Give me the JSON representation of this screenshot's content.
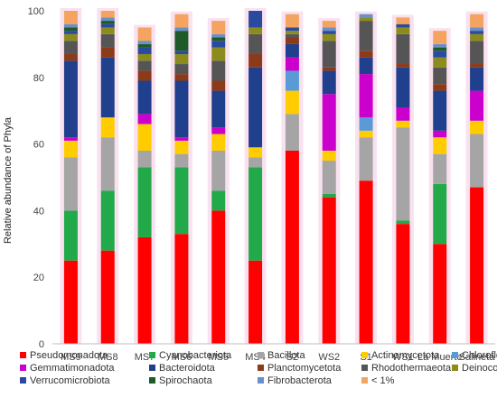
{
  "chart_data": {
    "type": "bar",
    "stacked": true,
    "title": "",
    "xlabel": "",
    "ylabel": "Relative abundance of Phyla",
    "ylim": [
      0,
      100
    ],
    "yticks": [
      0,
      20,
      40,
      60,
      80,
      100
    ],
    "grid": false,
    "legend_position": "bottom",
    "categories": [
      "MS9",
      "MS8",
      "MS7",
      "MS6",
      "MS5",
      "MS4",
      "S2",
      "WS2",
      "S1",
      "WS1",
      "La Muerte",
      "Salineta"
    ],
    "highlight_color": "#f7d6ea",
    "series": [
      {
        "name": "Pseudomonadota",
        "color": "#ff0000",
        "values": [
          25,
          28,
          32,
          33,
          40,
          25,
          58,
          44,
          49,
          36,
          30,
          47
        ]
      },
      {
        "name": "Cyanobacteriota",
        "color": "#22aa4a",
        "values": [
          15,
          18,
          21,
          20,
          6,
          28,
          0,
          1,
          0,
          1,
          18,
          0
        ]
      },
      {
        "name": "Bacillota",
        "color": "#a5a5a5",
        "values": [
          16,
          16,
          5,
          4,
          12,
          3,
          11,
          10,
          13,
          28,
          9,
          16
        ]
      },
      {
        "name": "Actinomycetota",
        "color": "#ffcc00",
        "values": [
          5,
          6,
          8,
          4,
          5,
          3,
          7,
          3,
          2,
          2,
          5,
          4
        ]
      },
      {
        "name": "Chloroflexota",
        "color": "#5b9bd5",
        "values": [
          0,
          0,
          0,
          0,
          0,
          0,
          6,
          0,
          4,
          0,
          0,
          0
        ]
      },
      {
        "name": "Gemmatimonadota",
        "color": "#cc00cc",
        "values": [
          1,
          0,
          3,
          1,
          2,
          0,
          4,
          17,
          13,
          4,
          2,
          9
        ]
      },
      {
        "name": "Bacteroidota",
        "color": "#203f8c",
        "values": [
          23,
          18,
          10,
          17,
          11,
          24,
          4,
          7,
          5,
          12,
          12,
          7
        ]
      },
      {
        "name": "Planctomycetota",
        "color": "#8b3a1a",
        "values": [
          2,
          3,
          3,
          2,
          3,
          4,
          2,
          1,
          2,
          1,
          2,
          1
        ]
      },
      {
        "name": "Rhodothermaeota",
        "color": "#555555",
        "values": [
          4,
          4,
          3,
          3,
          6,
          6,
          1,
          8,
          9,
          9,
          5,
          7
        ]
      },
      {
        "name": "Deinococcota",
        "color": "#8b8b1e",
        "values": [
          2,
          2,
          2,
          3,
          4,
          2,
          1,
          2,
          1,
          2,
          3,
          2
        ]
      },
      {
        "name": "Verrucomicrobiota",
        "color": "#2a4aa0",
        "values": [
          1,
          1,
          2,
          1,
          2,
          5,
          1,
          1,
          0,
          1,
          2,
          1
        ]
      },
      {
        "name": "Spirochaota",
        "color": "#1e5b28",
        "values": [
          1,
          1,
          1,
          6,
          1,
          0,
          0,
          0,
          0,
          0,
          1,
          0
        ]
      },
      {
        "name": "Fibrobacterota",
        "color": "#6b8fc8",
        "values": [
          1,
          1,
          1,
          1,
          1,
          0,
          0,
          1,
          1,
          0,
          1,
          1
        ]
      },
      {
        "name": "< 1%",
        "color": "#f4a460",
        "values": [
          4,
          2,
          4,
          4,
          4,
          0,
          4,
          2,
          0,
          2,
          4,
          4
        ]
      }
    ]
  }
}
